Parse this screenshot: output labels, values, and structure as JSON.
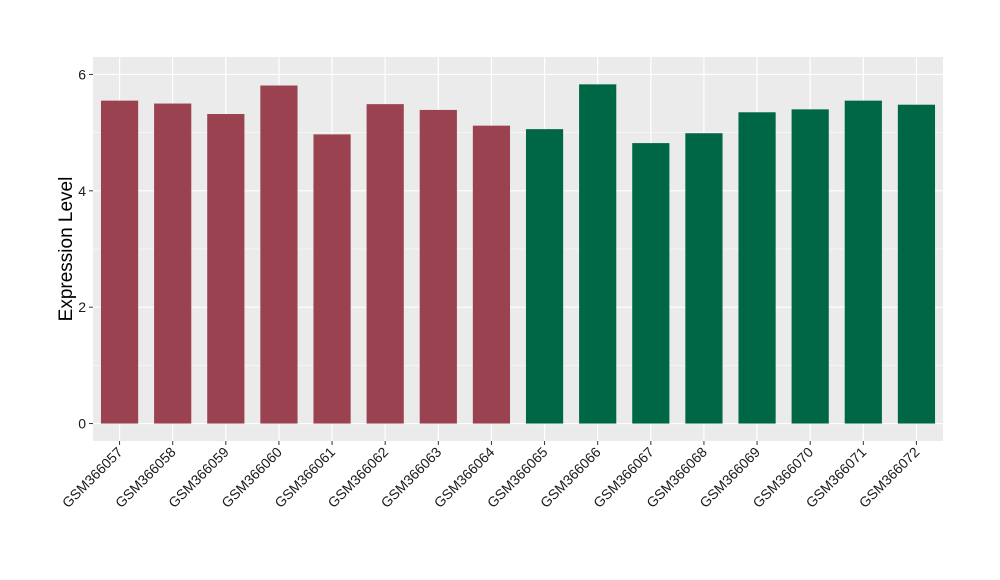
{
  "chart_data": {
    "type": "bar",
    "title": "",
    "xlabel": "",
    "ylabel": "Expression Level",
    "ylim": [
      -0.3,
      6.3
    ],
    "yticks": [
      0,
      2,
      4,
      6
    ],
    "grid": true,
    "legend": "none",
    "categories": [
      "GSM366057",
      "GSM366058",
      "GSM366059",
      "GSM366060",
      "GSM366061",
      "GSM366062",
      "GSM366063",
      "GSM366064",
      "GSM366065",
      "GSM366066",
      "GSM366067",
      "GSM366068",
      "GSM366069",
      "GSM366070",
      "GSM366071",
      "GSM366072"
    ],
    "values": [
      5.55,
      5.5,
      5.32,
      5.81,
      4.97,
      5.49,
      5.39,
      5.12,
      5.06,
      5.83,
      4.82,
      4.99,
      5.35,
      5.4,
      5.55,
      5.48
    ],
    "groups": [
      0,
      0,
      0,
      0,
      0,
      0,
      0,
      0,
      1,
      1,
      1,
      1,
      1,
      1,
      1,
      1
    ],
    "colors": {
      "group_0": "#9A4250",
      "group_1": "#006746",
      "panel_background": "#EBEBEB",
      "gridline": "#FFFFFF"
    }
  }
}
